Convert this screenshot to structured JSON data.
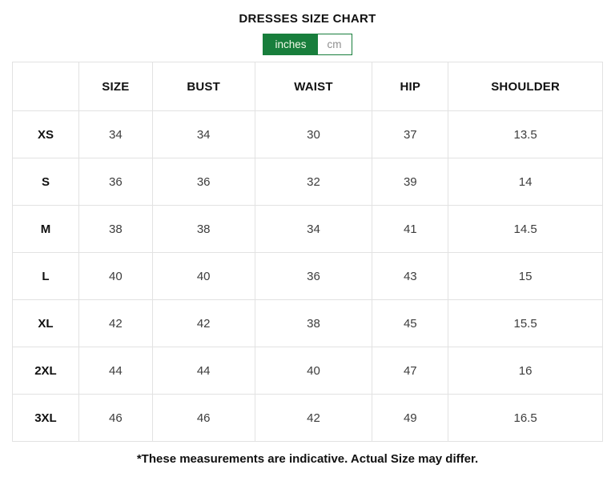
{
  "title": "DRESSES SIZE CHART",
  "unit_toggle": {
    "options": [
      {
        "label": "inches",
        "active": true
      },
      {
        "label": "cm",
        "active": false
      }
    ]
  },
  "colors": {
    "accent_green": "#187e3c",
    "table_border": "#e2e2e2",
    "heading_text": "#111111",
    "cell_text": "#3d3d3d",
    "inactive_toggle_text": "#8f8f8f"
  },
  "table": {
    "columns": [
      "",
      "SIZE",
      "BUST",
      "WAIST",
      "HIP",
      "SHOULDER"
    ],
    "rows": [
      {
        "label": "XS",
        "values": [
          "34",
          "34",
          "30",
          "37",
          "13.5"
        ]
      },
      {
        "label": "S",
        "values": [
          "36",
          "36",
          "32",
          "39",
          "14"
        ]
      },
      {
        "label": "M",
        "values": [
          "38",
          "38",
          "34",
          "41",
          "14.5"
        ]
      },
      {
        "label": "L",
        "values": [
          "40",
          "40",
          "36",
          "43",
          "15"
        ]
      },
      {
        "label": "XL",
        "values": [
          "42",
          "42",
          "38",
          "45",
          "15.5"
        ]
      },
      {
        "label": "2XL",
        "values": [
          "44",
          "44",
          "40",
          "47",
          "16"
        ]
      },
      {
        "label": "3XL",
        "values": [
          "46",
          "46",
          "42",
          "49",
          "16.5"
        ]
      }
    ]
  },
  "footnote": "*These measurements are indicative. Actual Size may differ."
}
